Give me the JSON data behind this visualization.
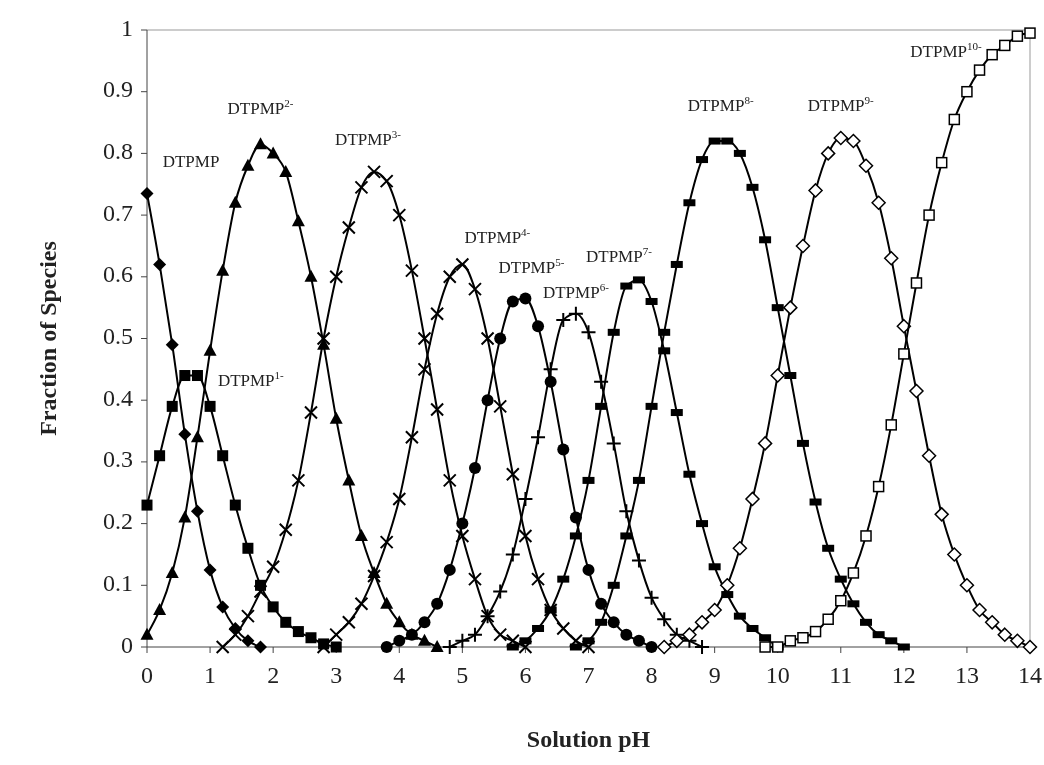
{
  "chart_data": {
    "type": "line",
    "xlabel": "Solution pH",
    "ylabel": "Fraction of Species",
    "xlim": [
      0,
      14
    ],
    "xticks": [
      0,
      1,
      2,
      3,
      4,
      5,
      6,
      7,
      8,
      9,
      10,
      11,
      12,
      13,
      14
    ],
    "ylim": [
      0,
      1
    ],
    "yticks": [
      0,
      0.1,
      0.2,
      0.3,
      0.4,
      0.5,
      0.6,
      0.7,
      0.8,
      0.9,
      1
    ],
    "grid": false,
    "series": [
      {
        "name": "DTPMP",
        "color": "#000000",
        "marker": "diamond",
        "x": [
          0,
          0.2,
          0.4,
          0.6,
          0.8,
          1,
          1.2,
          1.4,
          1.6,
          1.8
        ],
        "values": [
          0.735,
          0.62,
          0.49,
          0.345,
          0.22,
          0.125,
          0.065,
          0.03,
          0.01,
          0
        ]
      },
      {
        "name": "DTPMP$^{1-}$",
        "color": "#000000",
        "marker": "square",
        "x": [
          0,
          0.2,
          0.4,
          0.6,
          0.8,
          1,
          1.2,
          1.4,
          1.6,
          1.8,
          2,
          2.2,
          2.4,
          2.6,
          2.8,
          3
        ],
        "values": [
          0.23,
          0.31,
          0.39,
          0.44,
          0.44,
          0.39,
          0.31,
          0.23,
          0.16,
          0.1,
          0.065,
          0.04,
          0.025,
          0.015,
          0.005,
          0
        ]
      },
      {
        "name": "DTPMP$^{2-}$",
        "color": "#000000",
        "marker": "triangle",
        "x": [
          0,
          0.2,
          0.4,
          0.6,
          0.8,
          1,
          1.2,
          1.4,
          1.6,
          1.8,
          2,
          2.2,
          2.4,
          2.6,
          2.8,
          3,
          3.2,
          3.4,
          3.6,
          3.8,
          4,
          4.2,
          4.4,
          4.6
        ],
        "values": [
          0.02,
          0.06,
          0.12,
          0.21,
          0.34,
          0.48,
          0.61,
          0.72,
          0.78,
          0.815,
          0.8,
          0.77,
          0.69,
          0.6,
          0.49,
          0.37,
          0.27,
          0.18,
          0.12,
          0.07,
          0.04,
          0.02,
          0.01,
          0
        ]
      },
      {
        "name": "DTPMP$^{3-}$",
        "color": "#000000",
        "marker": "cross",
        "x": [
          1.2,
          1.4,
          1.6,
          1.8,
          2,
          2.2,
          2.4,
          2.6,
          2.8,
          3,
          3.2,
          3.4,
          3.6,
          3.8,
          4,
          4.2,
          4.4,
          4.6,
          4.8,
          5,
          5.2,
          5.4,
          5.6,
          5.8,
          6
        ],
        "values": [
          0,
          0.02,
          0.05,
          0.09,
          0.13,
          0.19,
          0.27,
          0.38,
          0.5,
          0.6,
          0.68,
          0.745,
          0.77,
          0.755,
          0.7,
          0.61,
          0.5,
          0.385,
          0.27,
          0.18,
          0.11,
          0.05,
          0.02,
          0.01,
          0
        ]
      },
      {
        "name": "DTPMP$^{4-}$",
        "color": "#000000",
        "marker": "cross",
        "x": [
          2.8,
          3,
          3.2,
          3.4,
          3.6,
          3.8,
          4,
          4.2,
          4.4,
          4.6,
          4.8,
          5,
          5.2,
          5.4,
          5.6,
          5.8,
          6,
          6.2,
          6.4,
          6.6,
          6.8,
          7
        ],
        "values": [
          0,
          0.02,
          0.04,
          0.07,
          0.115,
          0.17,
          0.24,
          0.34,
          0.45,
          0.54,
          0.6,
          0.62,
          0.58,
          0.5,
          0.39,
          0.28,
          0.18,
          0.11,
          0.06,
          0.03,
          0.01,
          0
        ]
      },
      {
        "name": "DTPMP$^{5-}$",
        "color": "#000000",
        "marker": "circle",
        "x": [
          3.8,
          4,
          4.2,
          4.4,
          4.6,
          4.8,
          5,
          5.2,
          5.4,
          5.6,
          5.8,
          6,
          6.2,
          6.4,
          6.6,
          6.8,
          7,
          7.2,
          7.4,
          7.6,
          7.8,
          8
        ],
        "values": [
          0,
          0.01,
          0.02,
          0.04,
          0.07,
          0.125,
          0.2,
          0.29,
          0.4,
          0.5,
          0.56,
          0.565,
          0.52,
          0.43,
          0.32,
          0.21,
          0.125,
          0.07,
          0.04,
          0.02,
          0.01,
          0
        ]
      },
      {
        "name": "DTPMP$^{6-}$",
        "color": "#000000",
        "marker": "cross",
        "x": [
          4.8,
          5,
          5.2,
          5.4,
          5.6,
          5.8,
          6,
          6.2,
          6.4,
          6.6,
          6.8,
          7,
          7.2,
          7.4,
          7.6,
          7.8,
          8,
          8.2,
          8.4,
          8.6,
          8.8
        ],
        "values": [
          0,
          0.01,
          0.02,
          0.05,
          0.09,
          0.15,
          0.24,
          0.34,
          0.45,
          0.53,
          0.54,
          0.51,
          0.43,
          0.33,
          0.22,
          0.14,
          0.08,
          0.045,
          0.02,
          0.01,
          0
        ]
      },
      {
        "name": "DTPMP$^{7-}$",
        "color": "#000000",
        "marker": "square",
        "x": [
          5.8,
          6,
          6.2,
          6.4,
          6.6,
          6.8,
          7,
          7.2,
          7.4,
          7.6,
          7.8,
          8,
          8.2,
          8.4,
          8.6,
          8.8,
          9,
          9.2,
          9.4,
          9.6,
          9.8,
          10
        ],
        "values": [
          0,
          0.01,
          0.03,
          0.06,
          0.11,
          0.18,
          0.27,
          0.39,
          0.51,
          0.585,
          0.595,
          0.56,
          0.48,
          0.38,
          0.28,
          0.2,
          0.13,
          0.085,
          0.05,
          0.03,
          0.015,
          0
        ]
      },
      {
        "name": "DTPMP$^{8-}$",
        "color": "#000000",
        "marker": "square",
        "x": [
          6.8,
          7,
          7.2,
          7.4,
          7.6,
          7.8,
          8,
          8.2,
          8.4,
          8.6,
          8.8,
          9,
          9.2,
          9.4,
          9.6,
          9.8,
          10,
          10.2,
          10.4,
          10.6,
          10.8,
          11,
          11.2,
          11.4,
          11.6,
          11.8,
          12
        ],
        "values": [
          0,
          0.01,
          0.04,
          0.1,
          0.18,
          0.27,
          0.39,
          0.51,
          0.62,
          0.72,
          0.79,
          0.82,
          0.82,
          0.8,
          0.745,
          0.66,
          0.55,
          0.44,
          0.33,
          0.235,
          0.16,
          0.11,
          0.07,
          0.04,
          0.02,
          0.01,
          0
        ]
      },
      {
        "name": "DTPMP$^{9-}$",
        "color": "#000000",
        "marker": "diamond",
        "x": [
          8.2,
          8.4,
          8.6,
          8.8,
          9,
          9.2,
          9.4,
          9.6,
          9.8,
          10,
          10.2,
          10.4,
          10.6,
          10.8,
          11,
          11.2,
          11.4,
          11.6,
          11.8,
          12,
          12.2,
          12.4,
          12.6,
          12.8,
          13,
          13.2,
          13.4,
          13.6,
          13.8,
          14
        ],
        "values": [
          0,
          0.01,
          0.02,
          0.04,
          0.06,
          0.1,
          0.16,
          0.24,
          0.33,
          0.44,
          0.55,
          0.65,
          0.74,
          0.8,
          0.825,
          0.82,
          0.78,
          0.72,
          0.63,
          0.52,
          0.415,
          0.31,
          0.215,
          0.15,
          0.1,
          0.06,
          0.04,
          0.02,
          0.01,
          0
        ]
      },
      {
        "name": "DTPMP$^{10-}$",
        "color": "#000000",
        "marker": "square",
        "x": [
          9.8,
          10,
          10.2,
          10.4,
          10.6,
          10.8,
          11,
          11.2,
          11.4,
          11.6,
          11.8,
          12,
          12.2,
          12.4,
          12.6,
          12.8,
          13,
          13.2,
          13.4,
          13.6,
          13.8,
          14
        ],
        "values": [
          0,
          0,
          0.01,
          0.015,
          0.025,
          0.045,
          0.075,
          0.12,
          0.18,
          0.26,
          0.36,
          0.475,
          0.59,
          0.7,
          0.785,
          0.855,
          0.9,
          0.935,
          0.96,
          0.975,
          0.99,
          0.995
        ]
      }
    ]
  }
}
